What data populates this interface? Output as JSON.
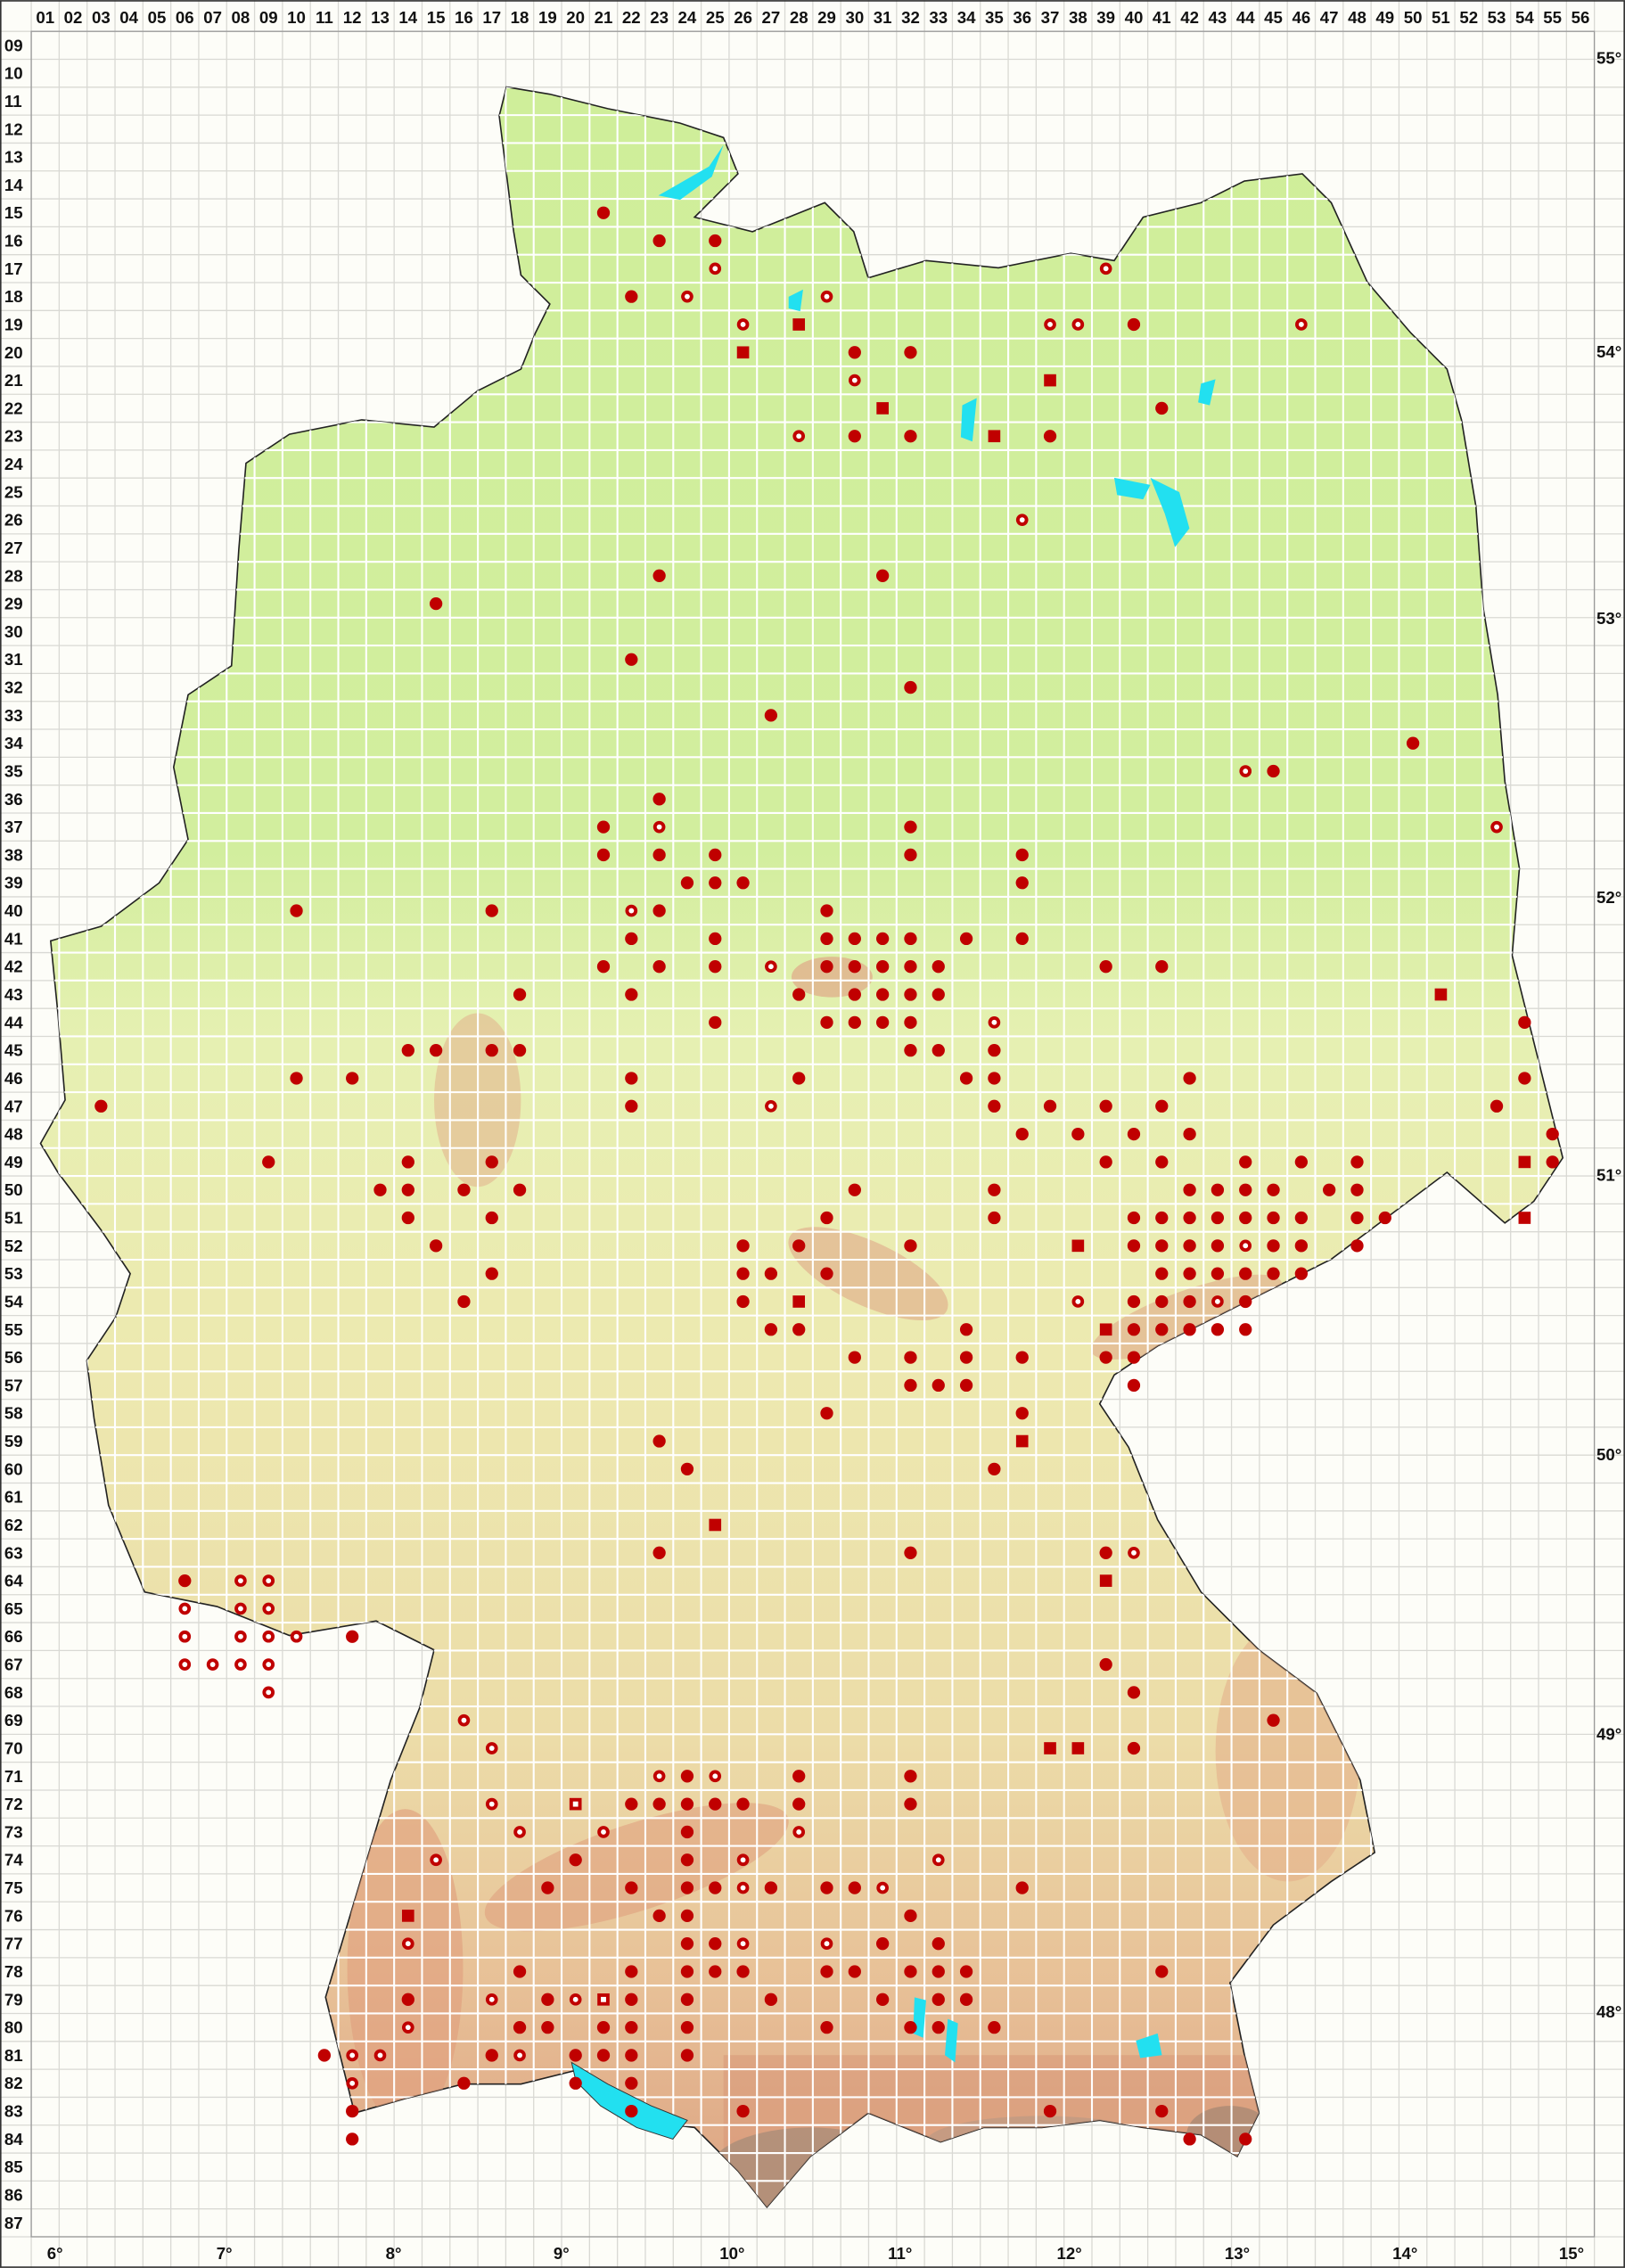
{
  "map": {
    "type": "grid distribution map",
    "colors": {
      "marker": "#c00000",
      "lowland": "#cfee9a",
      "upland": "#ecd7a8",
      "mountain": "#e3ab86",
      "water": "#22e0f0",
      "grid_outside": "#d9d9d4",
      "grid_inside": "#ffffff"
    },
    "column_labels": [
      "01",
      "02",
      "03",
      "04",
      "05",
      "06",
      "07",
      "08",
      "09",
      "10",
      "11",
      "12",
      "13",
      "14",
      "15",
      "16",
      "17",
      "18",
      "19",
      "20",
      "21",
      "22",
      "23",
      "24",
      "25",
      "26",
      "27",
      "28",
      "29",
      "30",
      "31",
      "32",
      "33",
      "34",
      "35",
      "36",
      "37",
      "38",
      "39",
      "40",
      "41",
      "42",
      "43",
      "44",
      "45",
      "46",
      "47",
      "48",
      "49",
      "50",
      "51",
      "52",
      "53",
      "54",
      "55",
      "56"
    ],
    "row_labels": [
      "09",
      "10",
      "11",
      "12",
      "13",
      "14",
      "15",
      "16",
      "17",
      "18",
      "19",
      "20",
      "21",
      "22",
      "23",
      "24",
      "25",
      "26",
      "27",
      "28",
      "29",
      "30",
      "31",
      "32",
      "33",
      "34",
      "35",
      "36",
      "37",
      "38",
      "39",
      "40",
      "41",
      "42",
      "43",
      "44",
      "45",
      "46",
      "47",
      "48",
      "49",
      "50",
      "51",
      "52",
      "53",
      "54",
      "55",
      "56",
      "57",
      "58",
      "59",
      "60",
      "61",
      "62",
      "63",
      "64",
      "65",
      "66",
      "67",
      "68",
      "69",
      "70",
      "71",
      "72",
      "73",
      "74",
      "75",
      "76",
      "77",
      "78",
      "79",
      "80",
      "81",
      "82",
      "83",
      "84",
      "85",
      "86",
      "87"
    ],
    "longitude_labels": [
      "6°",
      "7°",
      "8°",
      "9°",
      "10°",
      "11°",
      "12°",
      "13°",
      "14°",
      "15°"
    ],
    "latitude_labels": [
      "55°",
      "54°",
      "53°",
      "52°",
      "51°",
      "50°",
      "49°",
      "48°"
    ]
  },
  "markers": {
    "filled_circle": [
      [
        21,
        15
      ],
      [
        23,
        16
      ],
      [
        25,
        16
      ],
      [
        22,
        18
      ],
      [
        30,
        20
      ],
      [
        32,
        20
      ],
      [
        30,
        23
      ],
      [
        32,
        23
      ],
      [
        40,
        19
      ],
      [
        41,
        22
      ],
      [
        37,
        23
      ],
      [
        23,
        28
      ],
      [
        31,
        28
      ],
      [
        15,
        29
      ],
      [
        22,
        31
      ],
      [
        32,
        32
      ],
      [
        27,
        33
      ],
      [
        50,
        34
      ],
      [
        45,
        35
      ],
      [
        23,
        36
      ],
      [
        21,
        37
      ],
      [
        32,
        37
      ],
      [
        21,
        38
      ],
      [
        23,
        38
      ],
      [
        25,
        38
      ],
      [
        32,
        38
      ],
      [
        36,
        38
      ],
      [
        24,
        39
      ],
      [
        25,
        39
      ],
      [
        26,
        39
      ],
      [
        36,
        39
      ],
      [
        10,
        40
      ],
      [
        17,
        40
      ],
      [
        23,
        40
      ],
      [
        29,
        40
      ],
      [
        22,
        41
      ],
      [
        25,
        41
      ],
      [
        29,
        41
      ],
      [
        30,
        41
      ],
      [
        31,
        41
      ],
      [
        32,
        41
      ],
      [
        34,
        41
      ],
      [
        36,
        41
      ],
      [
        21,
        42
      ],
      [
        23,
        42
      ],
      [
        25,
        42
      ],
      [
        29,
        42
      ],
      [
        30,
        42
      ],
      [
        31,
        42
      ],
      [
        32,
        42
      ],
      [
        33,
        42
      ],
      [
        39,
        42
      ],
      [
        41,
        42
      ],
      [
        18,
        43
      ],
      [
        22,
        43
      ],
      [
        28,
        43
      ],
      [
        30,
        43
      ],
      [
        31,
        43
      ],
      [
        32,
        43
      ],
      [
        33,
        43
      ],
      [
        25,
        44
      ],
      [
        29,
        44
      ],
      [
        30,
        44
      ],
      [
        31,
        44
      ],
      [
        32,
        44
      ],
      [
        54,
        44
      ],
      [
        14,
        45
      ],
      [
        15,
        45
      ],
      [
        17,
        45
      ],
      [
        18,
        45
      ],
      [
        32,
        45
      ],
      [
        33,
        45
      ],
      [
        35,
        45
      ],
      [
        10,
        46
      ],
      [
        12,
        46
      ],
      [
        22,
        46
      ],
      [
        28,
        46
      ],
      [
        34,
        46
      ],
      [
        35,
        46
      ],
      [
        42,
        46
      ],
      [
        54,
        46
      ],
      [
        3,
        47
      ],
      [
        22,
        47
      ],
      [
        35,
        47
      ],
      [
        37,
        47
      ],
      [
        39,
        47
      ],
      [
        41,
        47
      ],
      [
        53,
        47
      ],
      [
        36,
        48
      ],
      [
        38,
        48
      ],
      [
        40,
        48
      ],
      [
        42,
        48
      ],
      [
        55,
        48
      ],
      [
        9,
        49
      ],
      [
        14,
        49
      ],
      [
        17,
        49
      ],
      [
        39,
        49
      ],
      [
        41,
        49
      ],
      [
        44,
        49
      ],
      [
        46,
        49
      ],
      [
        48,
        49
      ],
      [
        55,
        49
      ],
      [
        13,
        50
      ],
      [
        14,
        50
      ],
      [
        16,
        50
      ],
      [
        18,
        50
      ],
      [
        30,
        50
      ],
      [
        35,
        50
      ],
      [
        42,
        50
      ],
      [
        43,
        50
      ],
      [
        44,
        50
      ],
      [
        45,
        50
      ],
      [
        47,
        50
      ],
      [
        48,
        50
      ],
      [
        14,
        51
      ],
      [
        17,
        51
      ],
      [
        29,
        51
      ],
      [
        35,
        51
      ],
      [
        40,
        51
      ],
      [
        41,
        51
      ],
      [
        42,
        51
      ],
      [
        43,
        51
      ],
      [
        44,
        51
      ],
      [
        45,
        51
      ],
      [
        46,
        51
      ],
      [
        48,
        51
      ],
      [
        49,
        51
      ],
      [
        15,
        52
      ],
      [
        26,
        52
      ],
      [
        28,
        52
      ],
      [
        32,
        52
      ],
      [
        40,
        52
      ],
      [
        41,
        52
      ],
      [
        42,
        52
      ],
      [
        43,
        52
      ],
      [
        45,
        52
      ],
      [
        46,
        52
      ],
      [
        48,
        52
      ],
      [
        17,
        53
      ],
      [
        26,
        53
      ],
      [
        27,
        53
      ],
      [
        29,
        53
      ],
      [
        41,
        53
      ],
      [
        42,
        53
      ],
      [
        43,
        53
      ],
      [
        44,
        53
      ],
      [
        45,
        53
      ],
      [
        46,
        53
      ],
      [
        16,
        54
      ],
      [
        26,
        54
      ],
      [
        40,
        54
      ],
      [
        41,
        54
      ],
      [
        42,
        54
      ],
      [
        44,
        54
      ],
      [
        27,
        55
      ],
      [
        28,
        55
      ],
      [
        34,
        55
      ],
      [
        40,
        55
      ],
      [
        41,
        55
      ],
      [
        42,
        55
      ],
      [
        43,
        55
      ],
      [
        44,
        55
      ],
      [
        30,
        56
      ],
      [
        32,
        56
      ],
      [
        34,
        56
      ],
      [
        36,
        56
      ],
      [
        39,
        56
      ],
      [
        40,
        56
      ],
      [
        32,
        57
      ],
      [
        33,
        57
      ],
      [
        34,
        57
      ],
      [
        40,
        57
      ],
      [
        29,
        58
      ],
      [
        36,
        58
      ],
      [
        23,
        59
      ],
      [
        24,
        60
      ],
      [
        35,
        60
      ],
      [
        23,
        63
      ],
      [
        32,
        63
      ],
      [
        39,
        63
      ],
      [
        6,
        64
      ],
      [
        12,
        66
      ],
      [
        39,
        67
      ],
      [
        40,
        68
      ],
      [
        45,
        69
      ],
      [
        40,
        70
      ],
      [
        24,
        71
      ],
      [
        28,
        71
      ],
      [
        32,
        71
      ],
      [
        22,
        72
      ],
      [
        23,
        72
      ],
      [
        24,
        72
      ],
      [
        25,
        72
      ],
      [
        26,
        72
      ],
      [
        28,
        72
      ],
      [
        32,
        72
      ],
      [
        24,
        73
      ],
      [
        20,
        74
      ],
      [
        24,
        74
      ],
      [
        19,
        75
      ],
      [
        22,
        75
      ],
      [
        24,
        75
      ],
      [
        25,
        75
      ],
      [
        27,
        75
      ],
      [
        29,
        75
      ],
      [
        30,
        75
      ],
      [
        36,
        75
      ],
      [
        23,
        76
      ],
      [
        24,
        76
      ],
      [
        32,
        76
      ],
      [
        24,
        77
      ],
      [
        25,
        77
      ],
      [
        31,
        77
      ],
      [
        33,
        77
      ],
      [
        18,
        78
      ],
      [
        22,
        78
      ],
      [
        24,
        78
      ],
      [
        25,
        78
      ],
      [
        26,
        78
      ],
      [
        29,
        78
      ],
      [
        30,
        78
      ],
      [
        32,
        78
      ],
      [
        33,
        78
      ],
      [
        34,
        78
      ],
      [
        41,
        78
      ],
      [
        14,
        79
      ],
      [
        19,
        79
      ],
      [
        22,
        79
      ],
      [
        24,
        79
      ],
      [
        27,
        79
      ],
      [
        31,
        79
      ],
      [
        33,
        79
      ],
      [
        34,
        79
      ],
      [
        18,
        80
      ],
      [
        19,
        80
      ],
      [
        21,
        80
      ],
      [
        22,
        80
      ],
      [
        24,
        80
      ],
      [
        29,
        80
      ],
      [
        32,
        80
      ],
      [
        33,
        80
      ],
      [
        35,
        80
      ],
      [
        11,
        81
      ],
      [
        17,
        81
      ],
      [
        20,
        81
      ],
      [
        21,
        81
      ],
      [
        22,
        81
      ],
      [
        24,
        81
      ],
      [
        16,
        82
      ],
      [
        20,
        82
      ],
      [
        22,
        82
      ],
      [
        12,
        83
      ],
      [
        22,
        83
      ],
      [
        26,
        83
      ],
      [
        37,
        83
      ],
      [
        41,
        83
      ],
      [
        12,
        84
      ],
      [
        42,
        84
      ],
      [
        44,
        84
      ]
    ],
    "open_circle": [
      [
        25,
        17
      ],
      [
        24,
        18
      ],
      [
        29,
        18
      ],
      [
        26,
        19
      ],
      [
        30,
        21
      ],
      [
        28,
        23
      ],
      [
        39,
        17
      ],
      [
        37,
        19
      ],
      [
        38,
        19
      ],
      [
        46,
        19
      ],
      [
        36,
        26
      ],
      [
        44,
        35
      ],
      [
        23,
        37
      ],
      [
        53,
        37
      ],
      [
        22,
        40
      ],
      [
        27,
        42
      ],
      [
        35,
        44
      ],
      [
        27,
        47
      ],
      [
        44,
        52
      ],
      [
        38,
        54
      ],
      [
        43,
        54
      ],
      [
        40,
        63
      ],
      [
        8,
        64
      ],
      [
        9,
        64
      ],
      [
        6,
        65
      ],
      [
        8,
        65
      ],
      [
        9,
        65
      ],
      [
        6,
        66
      ],
      [
        8,
        66
      ],
      [
        9,
        66
      ],
      [
        10,
        66
      ],
      [
        6,
        67
      ],
      [
        7,
        67
      ],
      [
        8,
        67
      ],
      [
        9,
        67
      ],
      [
        9,
        68
      ],
      [
        16,
        69
      ],
      [
        17,
        70
      ],
      [
        23,
        71
      ],
      [
        25,
        71
      ],
      [
        17,
        72
      ],
      [
        18,
        73
      ],
      [
        21,
        73
      ],
      [
        28,
        73
      ],
      [
        15,
        74
      ],
      [
        26,
        74
      ],
      [
        33,
        74
      ],
      [
        26,
        75
      ],
      [
        31,
        75
      ],
      [
        14,
        77
      ],
      [
        26,
        77
      ],
      [
        29,
        77
      ],
      [
        17,
        79
      ],
      [
        20,
        79
      ],
      [
        14,
        80
      ],
      [
        12,
        81
      ],
      [
        13,
        81
      ],
      [
        18,
        81
      ],
      [
        12,
        82
      ]
    ],
    "filled_square": [
      [
        28,
        19
      ],
      [
        26,
        20
      ],
      [
        31,
        22
      ],
      [
        37,
        21
      ],
      [
        35,
        23
      ],
      [
        51,
        43
      ],
      [
        54,
        49
      ],
      [
        54,
        51
      ],
      [
        38,
        52
      ],
      [
        28,
        54
      ],
      [
        39,
        55
      ],
      [
        36,
        59
      ],
      [
        25,
        62
      ],
      [
        39,
        64
      ],
      [
        37,
        70
      ],
      [
        38,
        70
      ],
      [
        14,
        76
      ]
    ],
    "open_square": [
      [
        20,
        72
      ],
      [
        21,
        79
      ]
    ]
  }
}
